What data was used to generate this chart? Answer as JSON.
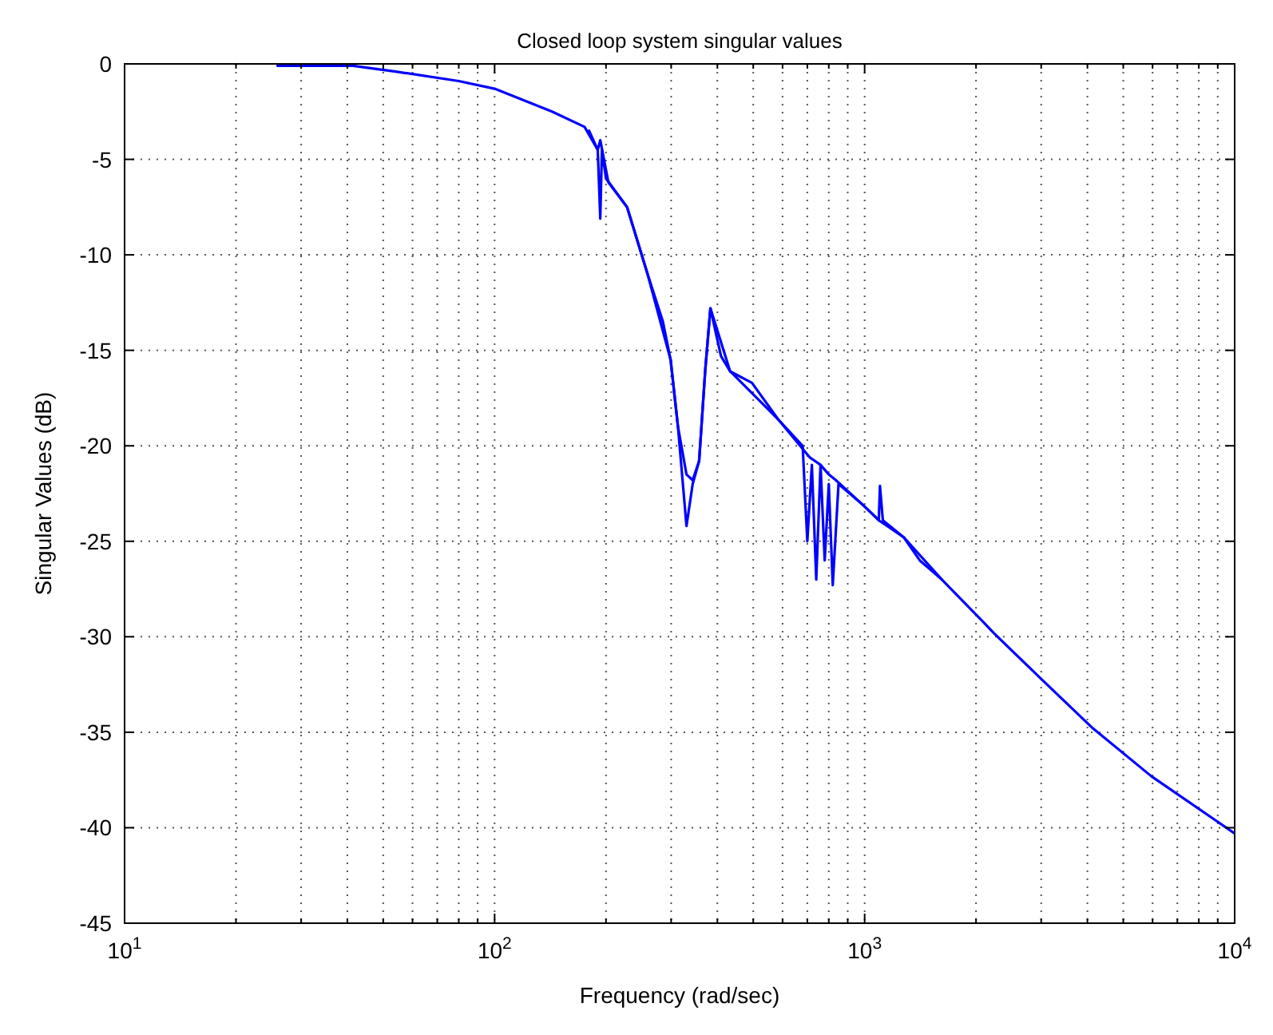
{
  "chart_data": {
    "type": "line",
    "title": "Closed loop system singular values",
    "xlabel": "Frequency (rad/sec)",
    "ylabel": "Singular Values (dB)",
    "log": "x",
    "grid": true,
    "line_style": "solid",
    "marker": "none",
    "xlim": [
      10,
      10000
    ],
    "ylim": [
      -45,
      0
    ],
    "xticks": [
      {
        "value": 10,
        "label": "10$^{1}$"
      },
      {
        "value": 20,
        "label": null
      },
      {
        "value": 30,
        "label": null
      },
      {
        "value": 40,
        "label": null
      },
      {
        "value": 50,
        "label": null
      },
      {
        "value": 60,
        "label": null
      },
      {
        "value": 70,
        "label": null
      },
      {
        "value": 80,
        "label": null
      },
      {
        "value": 90,
        "label": null
      },
      {
        "value": 100,
        "label": "10$^{2}$"
      },
      {
        "value": 200,
        "label": null
      },
      {
        "value": 300,
        "label": null
      },
      {
        "value": 400,
        "label": null
      },
      {
        "value": 500,
        "label": null
      },
      {
        "value": 600,
        "label": null
      },
      {
        "value": 700,
        "label": null
      },
      {
        "value": 800,
        "label": null
      },
      {
        "value": 900,
        "label": null
      },
      {
        "value": 1000,
        "label": "10$^{3}$"
      },
      {
        "value": 2000,
        "label": null
      },
      {
        "value": 3000,
        "label": null
      },
      {
        "value": 4000,
        "label": null
      },
      {
        "value": 5000,
        "label": null
      },
      {
        "value": 6000,
        "label": null
      },
      {
        "value": 7000,
        "label": null
      },
      {
        "value": 8000,
        "label": null
      },
      {
        "value": 9000,
        "label": null
      },
      {
        "value": 10000,
        "label": "10$^{4}$"
      }
    ],
    "yticks": [
      -45,
      -40,
      -35,
      -30,
      -25,
      -20,
      -15,
      -10,
      -5,
      0
    ],
    "series": [
      {
        "color": "#0000ff",
        "x": [
          25.9,
          41.4,
          54,
          80,
          100,
          143,
          175,
          190,
          193,
          203,
          228,
          259,
          285,
          299,
          313,
          330,
          343,
          357,
          371,
          383,
          409,
          433,
          496,
          583,
          710,
          760,
          800,
          836,
          990,
          1092,
          1277,
          1409,
          1616,
          2085,
          2233,
          2996,
          4140,
          5950,
          10000
        ],
        "values": [
          -0.1,
          -0.1,
          -0.4,
          -0.9,
          -1.3,
          -2.5,
          -3.3,
          -4.5,
          -4.0,
          -6.2,
          -7.5,
          -11,
          -13.5,
          -15.5,
          -19,
          -21.5,
          -21.8,
          -20.8,
          -16,
          -12.8,
          -15.3,
          -16.1,
          -16.7,
          -18.6,
          -20.6,
          -21,
          -21.5,
          -21.8,
          -23.1,
          -23.9,
          -24.8,
          -26,
          -27,
          -29.2,
          -29.8,
          -32.2,
          -34.8,
          -37.3,
          -40.3
        ]
      },
      {
        "color": "#0000ff",
        "x": [
          180,
          190,
          193,
          195,
          200,
          228,
          259,
          299,
          313,
          330,
          343,
          357,
          371,
          383,
          433,
          583,
          680,
          700,
          720,
          740,
          760,
          780,
          800,
          820,
          850,
          990,
          1092,
          1100,
          1120,
          1277,
          1616
        ],
        "values": [
          -3.5,
          -4.5,
          -8.1,
          -4.5,
          -6,
          -7.5,
          -11,
          -15.5,
          -19,
          -24.2,
          -22,
          -20.8,
          -16,
          -12.8,
          -16.1,
          -18.6,
          -20,
          -25,
          -21,
          -27,
          -21,
          -26,
          -22,
          -27.3,
          -22,
          -23.1,
          -23.9,
          -22.1,
          -23.9,
          -24.8,
          -27
        ]
      }
    ]
  }
}
